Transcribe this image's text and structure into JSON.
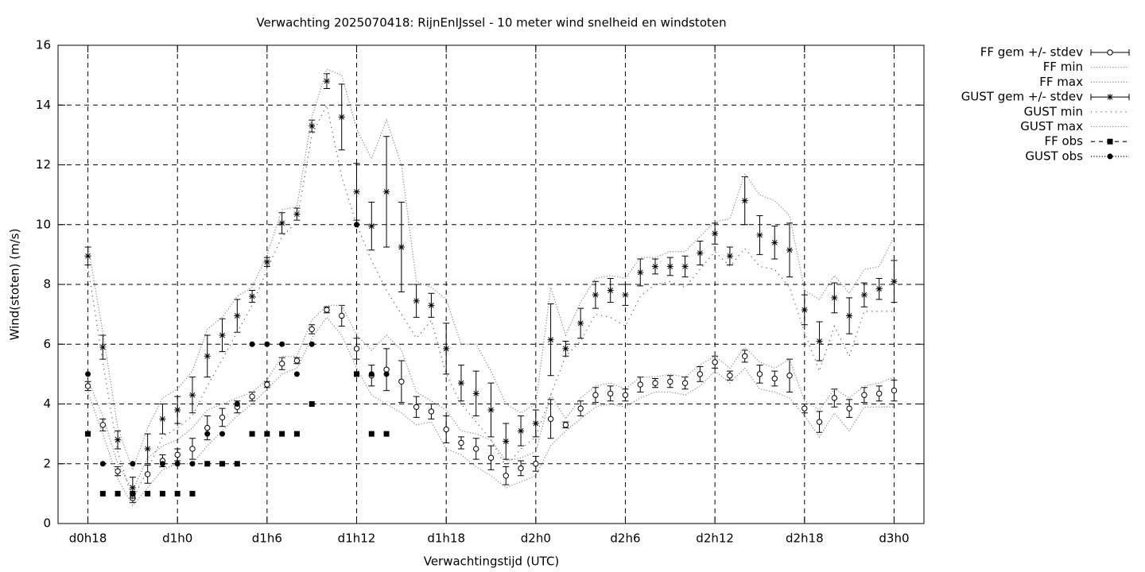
{
  "chart_data": {
    "type": "errorbar",
    "title": "Verwachting 2025070418: RijnEnIJssel - 10 meter wind snelheid en windstoten",
    "xlabel": "Verwachtingstijd (UTC)",
    "ylabel": "Wind(stoten) (m/s)",
    "x": [
      18,
      19,
      20,
      21,
      22,
      23,
      24,
      25,
      26,
      27,
      28,
      29,
      30,
      31,
      32,
      33,
      34,
      35,
      36,
      37,
      38,
      39,
      40,
      41,
      42,
      43,
      44,
      45,
      46,
      47,
      48,
      49,
      50,
      51,
      52,
      53,
      54,
      55,
      56,
      57,
      58,
      59,
      60,
      61,
      62,
      63,
      64,
      65,
      66,
      67,
      68,
      69,
      70,
      71,
      72
    ],
    "xlim": [
      16,
      74
    ],
    "xticks": [
      {
        "value": 18,
        "label": "d0h18"
      },
      {
        "value": 24,
        "label": "d1h0"
      },
      {
        "value": 30,
        "label": "d1h6"
      },
      {
        "value": 36,
        "label": "d1h12"
      },
      {
        "value": 42,
        "label": "d1h18"
      },
      {
        "value": 48,
        "label": "d2h0"
      },
      {
        "value": 54,
        "label": "d2h6"
      },
      {
        "value": 60,
        "label": "d2h12"
      },
      {
        "value": 66,
        "label": "d2h18"
      },
      {
        "value": 72,
        "label": "d3h0"
      }
    ],
    "ylim": [
      0,
      16
    ],
    "yticks": [
      0,
      2,
      4,
      6,
      8,
      10,
      12,
      14,
      16
    ],
    "grid": true,
    "legend": "outside-right",
    "series": [
      {
        "name": "FF gem +/- stdev",
        "color": "#000000",
        "marker": "circle",
        "line": "none",
        "values": [
          4.6,
          3.3,
          1.75,
          0.85,
          1.65,
          2.1,
          2.3,
          2.5,
          3.2,
          3.55,
          3.9,
          4.25,
          4.65,
          5.35,
          5.45,
          6.5,
          7.15,
          6.95,
          5.85,
          4.95,
          5.15,
          4.75,
          3.9,
          3.75,
          3.15,
          2.7,
          2.5,
          2.2,
          1.6,
          1.85,
          2.0,
          3.5,
          3.3,
          3.85,
          4.3,
          4.35,
          4.3,
          4.65,
          4.7,
          4.75,
          4.7,
          5.0,
          5.4,
          4.95,
          5.6,
          5.0,
          4.85,
          4.95,
          3.85,
          3.4,
          4.2,
          3.85,
          4.3,
          4.35,
          4.45
        ],
        "errors": [
          0.15,
          0.2,
          0.15,
          0.15,
          0.3,
          0.2,
          0.2,
          0.35,
          0.4,
          0.3,
          0.2,
          0.15,
          0.1,
          0.2,
          0.1,
          0.15,
          0.1,
          0.35,
          0.35,
          0.35,
          0.7,
          0.7,
          0.35,
          0.25,
          0.45,
          0.2,
          0.35,
          0.4,
          0.3,
          0.25,
          0.25,
          0.65,
          0.1,
          0.25,
          0.25,
          0.25,
          0.2,
          0.25,
          0.15,
          0.2,
          0.2,
          0.25,
          0.2,
          0.15,
          0.2,
          0.3,
          0.25,
          0.55,
          0.15,
          0.35,
          0.3,
          0.3,
          0.25,
          0.25,
          0.35
        ]
      },
      {
        "name": "FF min",
        "color": "#888888",
        "marker": "none",
        "line": "dotted",
        "values": [
          4.4,
          3.0,
          1.5,
          0.6,
          1.2,
          1.8,
          2.0,
          2.0,
          2.6,
          3.1,
          3.6,
          4.0,
          4.5,
          5.0,
          5.2,
          6.2,
          6.9,
          6.3,
          5.2,
          4.3,
          4.0,
          3.7,
          3.3,
          3.4,
          2.5,
          2.3,
          1.9,
          1.6,
          1.2,
          1.4,
          1.6,
          2.6,
          3.1,
          3.5,
          3.9,
          4.0,
          3.9,
          4.2,
          4.4,
          4.4,
          4.3,
          4.6,
          5.1,
          4.7,
          5.2,
          4.5,
          4.4,
          4.2,
          3.6,
          2.9,
          3.7,
          3.1,
          3.9,
          3.9,
          3.9
        ]
      },
      {
        "name": "FF max",
        "color": "#888888",
        "marker": "none",
        "line": "dotted",
        "values": [
          4.8,
          3.6,
          2.0,
          1.1,
          2.2,
          2.6,
          2.8,
          3.2,
          3.8,
          4.0,
          4.2,
          4.4,
          4.8,
          5.6,
          5.6,
          6.8,
          7.3,
          7.3,
          6.3,
          5.8,
          6.3,
          5.8,
          4.4,
          4.1,
          3.8,
          3.1,
          3.0,
          2.8,
          2.1,
          2.2,
          2.4,
          4.3,
          3.5,
          4.2,
          4.6,
          4.7,
          4.5,
          4.9,
          4.9,
          5.0,
          4.9,
          5.3,
          5.6,
          5.2,
          5.9,
          5.4,
          5.2,
          5.5,
          4.1,
          3.8,
          4.5,
          4.2,
          4.6,
          4.7,
          4.9
        ]
      },
      {
        "name": "GUST gem +/- stdev",
        "color": "#000000",
        "marker": "star",
        "line": "none",
        "values": [
          8.95,
          5.9,
          2.8,
          1.2,
          2.5,
          3.5,
          3.8,
          4.3,
          5.6,
          6.3,
          6.95,
          7.6,
          8.75,
          10.05,
          10.35,
          13.3,
          14.8,
          13.6,
          11.1,
          9.95,
          11.1,
          9.25,
          7.45,
          7.3,
          5.85,
          4.7,
          4.35,
          3.8,
          2.75,
          3.1,
          3.35,
          6.15,
          5.85,
          6.7,
          7.65,
          7.8,
          7.65,
          8.4,
          8.6,
          8.6,
          8.6,
          9.05,
          9.7,
          8.95,
          10.8,
          9.65,
          9.4,
          9.15,
          7.15,
          6.1,
          7.55,
          6.95,
          7.65,
          7.85,
          8.1
        ],
        "errors": [
          0.3,
          0.4,
          0.3,
          0.35,
          0.5,
          0.5,
          0.45,
          0.6,
          0.7,
          0.55,
          0.55,
          0.2,
          0.15,
          0.35,
          0.2,
          0.2,
          0.25,
          1.1,
          0.95,
          0.8,
          1.85,
          1.5,
          0.55,
          0.4,
          0.85,
          0.6,
          0.75,
          0.9,
          0.6,
          0.5,
          0.45,
          1.2,
          0.25,
          0.5,
          0.45,
          0.4,
          0.35,
          0.45,
          0.25,
          0.3,
          0.35,
          0.4,
          0.35,
          0.3,
          0.8,
          0.65,
          0.55,
          0.9,
          0.5,
          0.65,
          0.5,
          0.6,
          0.4,
          0.35,
          0.7
        ]
      },
      {
        "name": "GUST min",
        "color": "#555555",
        "marker": "none",
        "line": "sparse-dotted",
        "values": [
          8.6,
          5.4,
          2.4,
          0.8,
          1.8,
          2.9,
          3.2,
          3.6,
          4.6,
          5.5,
          6.4,
          7.3,
          8.5,
          9.6,
          10.1,
          13.0,
          14.0,
          11.6,
          10.0,
          8.8,
          7.8,
          7.0,
          6.2,
          6.8,
          5.0,
          4.0,
          3.4,
          2.8,
          1.9,
          2.5,
          2.9,
          4.3,
          5.6,
          6.1,
          7.0,
          6.9,
          6.6,
          7.6,
          8.0,
          8.1,
          7.9,
          8.5,
          9.1,
          8.6,
          9.2,
          8.6,
          8.5,
          7.9,
          6.4,
          5.1,
          6.6,
          5.6,
          7.1,
          7.1,
          7.1
        ]
      },
      {
        "name": "GUST max",
        "color": "#888888",
        "marker": "none",
        "line": "dotted",
        "values": [
          9.3,
          6.4,
          3.2,
          1.8,
          3.2,
          4.2,
          4.5,
          5.1,
          6.5,
          6.9,
          7.6,
          7.9,
          9.0,
          10.5,
          10.6,
          13.6,
          15.2,
          15.0,
          13.2,
          12.2,
          13.5,
          12.0,
          8.1,
          7.9,
          7.5,
          6.0,
          6.0,
          5.1,
          4.0,
          3.7,
          4.0,
          7.9,
          6.3,
          7.4,
          8.2,
          8.3,
          8.2,
          8.9,
          8.9,
          9.1,
          9.1,
          9.6,
          10.1,
          10.2,
          11.7,
          11.0,
          10.8,
          10.3,
          7.8,
          7.5,
          8.3,
          7.7,
          8.5,
          8.6,
          9.6
        ]
      },
      {
        "name": "FF obs",
        "color": "#000000",
        "marker": "square",
        "line": "none",
        "values": [
          3,
          1,
          1,
          1,
          1,
          1,
          1,
          1,
          2,
          2,
          2,
          3,
          3,
          3,
          3,
          4,
          null,
          null,
          5,
          3,
          3,
          null,
          null,
          null,
          null,
          null,
          null,
          null,
          null,
          null,
          null,
          null,
          null,
          null,
          null,
          null,
          null,
          null,
          null,
          null,
          null,
          null,
          null,
          null,
          null,
          null,
          null,
          null,
          null,
          null,
          null,
          null,
          null,
          null,
          null
        ]
      },
      {
        "name": "GUST obs",
        "color": "#000000",
        "marker": "dot",
        "line": "none",
        "values": [
          5,
          2,
          null,
          2,
          null,
          2,
          2,
          2,
          3,
          3,
          4,
          6,
          6,
          6,
          5,
          6,
          null,
          null,
          10,
          5,
          5,
          null,
          null,
          null,
          null,
          null,
          null,
          null,
          null,
          null,
          null,
          null,
          null,
          null,
          null,
          null,
          null,
          null,
          null,
          null,
          null,
          null,
          null,
          null,
          null,
          null,
          null,
          null,
          null,
          null,
          null,
          null,
          null,
          null,
          null
        ]
      }
    ]
  }
}
